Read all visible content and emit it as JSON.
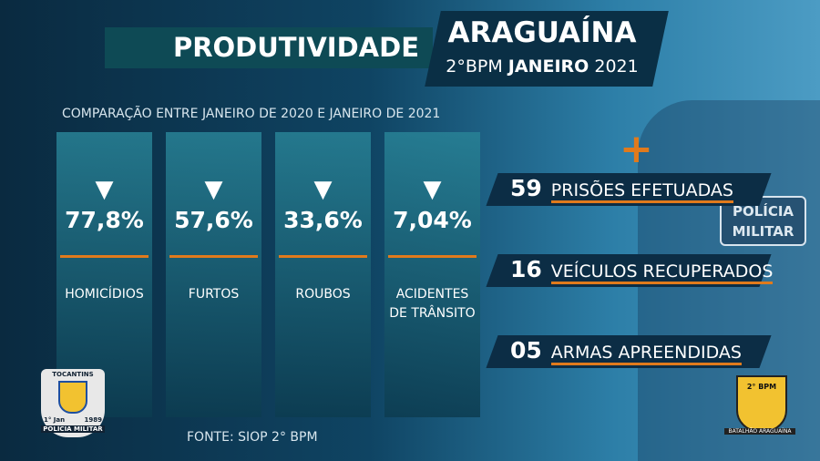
{
  "header": {
    "title": "PRODUTIVIDADE",
    "city": "ARAGUAÍNA",
    "unit": "2°BPM",
    "month": "JANEIRO",
    "year": "2021"
  },
  "subtitle": "COMPARAÇÃO ENTRE JANEIRO DE 2020 E JANEIRO DE 2021",
  "cards": [
    {
      "value": "77,8%",
      "label": "HOMICÍDIOS"
    },
    {
      "value": "57,6%",
      "label": "FURTOS"
    },
    {
      "value": "33,6%",
      "label": "ROUBOS"
    },
    {
      "value": "7,04%",
      "label": "ACIDENTES DE TRÂNSITO"
    }
  ],
  "stats": [
    {
      "number": "59",
      "word": "PRISÕES",
      "rest": "EFETUADAS"
    },
    {
      "number": "16",
      "word": "VEÍCULOS",
      "rest": "RECUPERADOS"
    },
    {
      "number": "05",
      "word": "ARMAS",
      "rest": "APREENDIDAS"
    }
  ],
  "source": "FONTE: SIOP 2° BPM",
  "vest": {
    "line1": "POLÍCIA",
    "line2": "MILITAR"
  },
  "logo_left": {
    "top": "TOCANTINS",
    "date": "1° Jan",
    "year": "1989",
    "bottom": "POLÍCIA MILITAR"
  },
  "logo_right": {
    "unit": "2° BPM",
    "bottom": "BATALHÃO ARAGUAÍNA"
  }
}
